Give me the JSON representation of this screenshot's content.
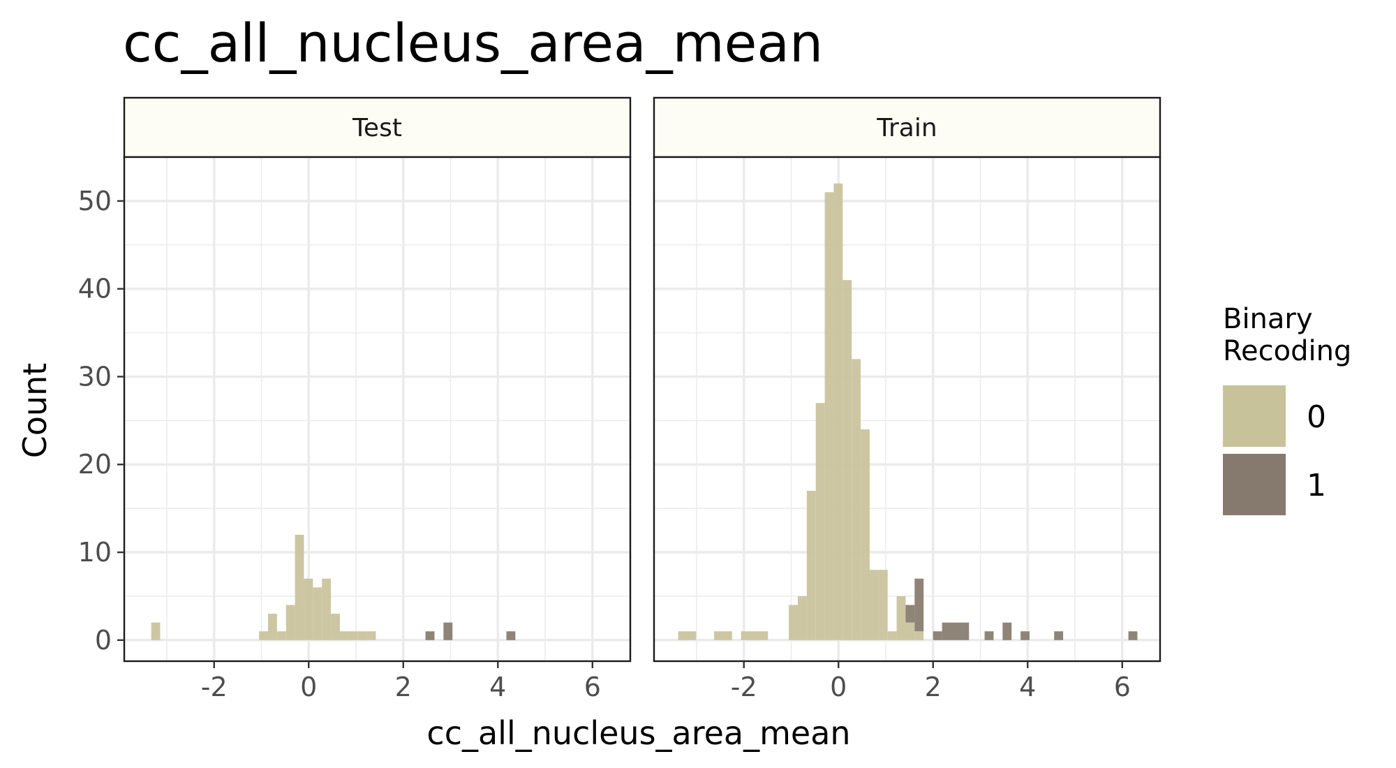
{
  "chart_data": {
    "type": "bar",
    "title": "cc_all_nucleus_area_mean",
    "xlabel": "cc_all_nucleus_area_mean",
    "ylabel": "Count",
    "xlim": [
      -3.9,
      6.8
    ],
    "ylim": [
      -2.4,
      55
    ],
    "x_ticks": [
      -2,
      0,
      2,
      4,
      6
    ],
    "y_ticks": [
      0,
      10,
      20,
      30,
      40,
      50
    ],
    "x_tick_labels": [
      "-2",
      "0",
      "2",
      "4",
      "6"
    ],
    "y_tick_labels": [
      "0",
      "10",
      "20",
      "30",
      "40",
      "50"
    ],
    "grid": true,
    "bin_width": 0.19,
    "legend": {
      "title_lines": [
        "Binary",
        "Recoding"
      ],
      "position": "right",
      "entries": [
        {
          "label": "0",
          "color": "#c8c29a"
        },
        {
          "label": "1",
          "color": "#857a6d"
        }
      ]
    },
    "panels": [
      {
        "name": "Test",
        "series": [
          {
            "name": "0",
            "color": "#c8c29a",
            "bins": [
              [
                -3.33,
                -3.14,
                2
              ],
              [
                -1.05,
                -0.86,
                1
              ],
              [
                -0.86,
                -0.67,
                3
              ],
              [
                -0.67,
                -0.48,
                1
              ],
              [
                -0.48,
                -0.29,
                4
              ],
              [
                -0.29,
                -0.1,
                12
              ],
              [
                -0.1,
                0.09,
                7
              ],
              [
                0.09,
                0.28,
                6
              ],
              [
                0.28,
                0.47,
                7
              ],
              [
                0.47,
                0.66,
                3
              ],
              [
                0.66,
                0.85,
                1
              ],
              [
                0.85,
                1.04,
                1
              ],
              [
                1.04,
                1.23,
                1
              ],
              [
                1.23,
                1.42,
                1
              ]
            ]
          },
          {
            "name": "1",
            "color": "#857a6d",
            "bins": [
              [
                2.47,
                2.66,
                1
              ],
              [
                2.85,
                3.04,
                2
              ],
              [
                4.18,
                4.37,
                1
              ]
            ]
          }
        ]
      },
      {
        "name": "Train",
        "series": [
          {
            "name": "0",
            "color": "#c8c29a",
            "bins": [
              [
                -3.39,
                -3.01,
                1
              ],
              [
                -2.63,
                -2.25,
                1
              ],
              [
                -2.06,
                -1.49,
                1
              ],
              [
                -1.05,
                -0.86,
                4
              ],
              [
                -0.86,
                -0.67,
                5
              ],
              [
                -0.67,
                -0.48,
                17
              ],
              [
                -0.48,
                -0.29,
                27
              ],
              [
                -0.29,
                -0.1,
                51
              ],
              [
                -0.1,
                0.09,
                52
              ],
              [
                0.09,
                0.28,
                41
              ],
              [
                0.28,
                0.47,
                32
              ],
              [
                0.47,
                0.66,
                24
              ],
              [
                0.66,
                0.85,
                8
              ],
              [
                0.85,
                1.04,
                8
              ],
              [
                1.04,
                1.23,
                1
              ],
              [
                1.23,
                1.42,
                5
              ],
              [
                1.42,
                1.61,
                2
              ],
              [
                1.61,
                1.8,
                1
              ]
            ]
          },
          {
            "name": "1",
            "color": "#857a6d",
            "bins": [
              [
                1.42,
                1.61,
                2
              ],
              [
                1.61,
                1.8,
                6
              ],
              [
                2.0,
                2.19,
                1
              ],
              [
                2.19,
                2.76,
                2
              ],
              [
                3.09,
                3.28,
                1
              ],
              [
                3.47,
                3.66,
                2
              ],
              [
                3.85,
                4.04,
                1
              ],
              [
                4.56,
                4.75,
                1
              ],
              [
                6.13,
                6.32,
                1
              ]
            ]
          }
        ]
      }
    ]
  }
}
